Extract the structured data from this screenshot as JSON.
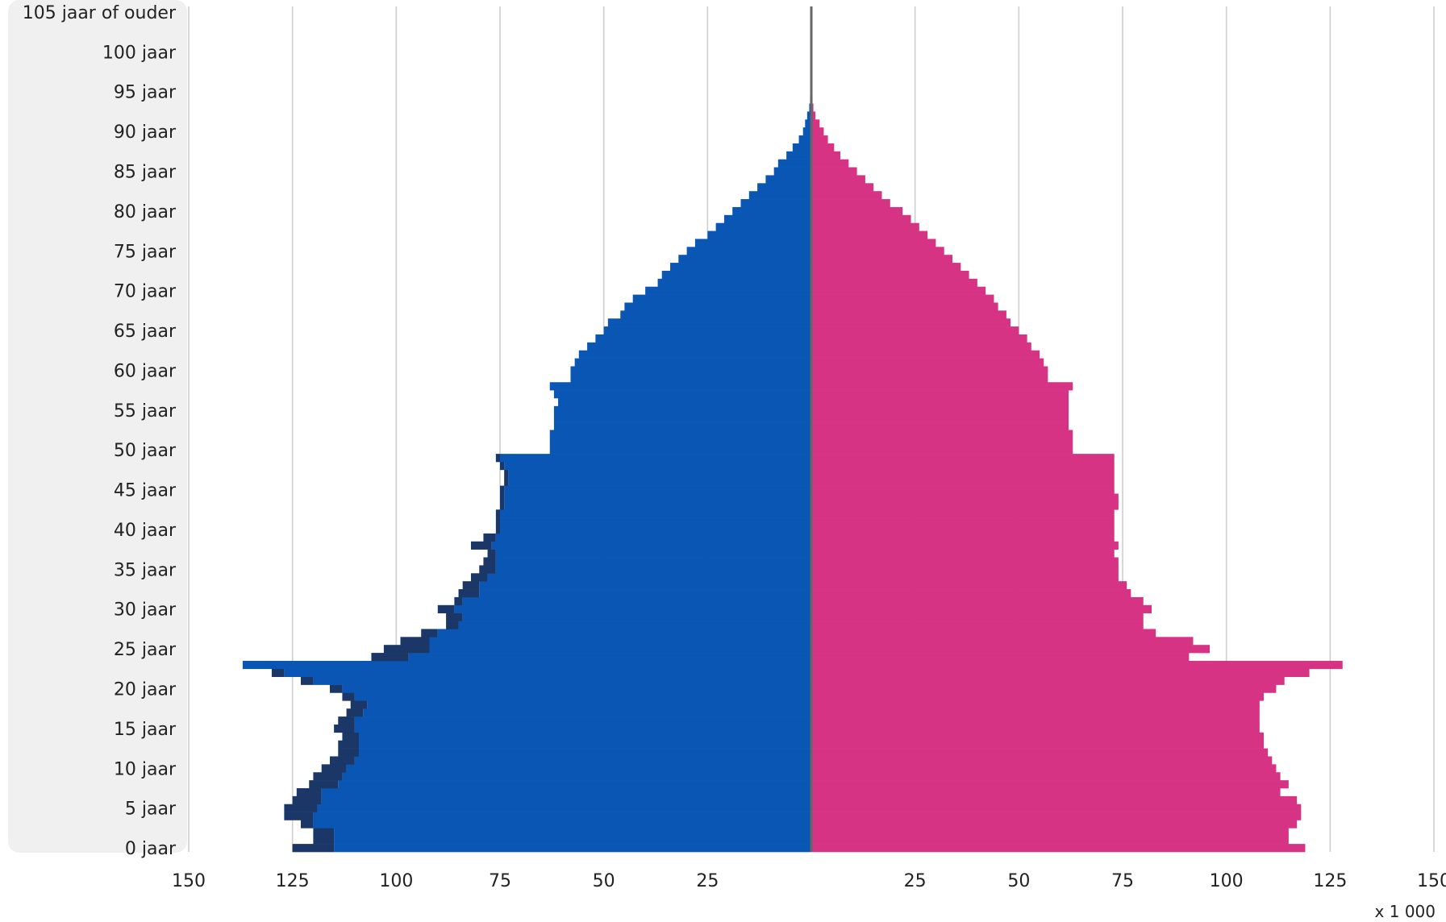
{
  "chart_data": {
    "type": "bar",
    "orientation": "horizontal-population-pyramid",
    "x_unit_label": "x 1 000",
    "x_tick_labels": [
      "150",
      "125",
      "100",
      "75",
      "50",
      "25",
      "",
      "25",
      "50",
      "75",
      "100",
      "125",
      "150"
    ],
    "xlim": [
      -150,
      150
    ],
    "grid": true,
    "age_labels": [
      {
        "age": 0,
        "label": "0 jaar"
      },
      {
        "age": 5,
        "label": "5 jaar"
      },
      {
        "age": 10,
        "label": "10 jaar"
      },
      {
        "age": 15,
        "label": "15 jaar"
      },
      {
        "age": 20,
        "label": "20 jaar"
      },
      {
        "age": 25,
        "label": "25 jaar"
      },
      {
        "age": 30,
        "label": "30 jaar"
      },
      {
        "age": 35,
        "label": "35 jaar"
      },
      {
        "age": 40,
        "label": "40 jaar"
      },
      {
        "age": 45,
        "label": "45 jaar"
      },
      {
        "age": 50,
        "label": "50 jaar"
      },
      {
        "age": 55,
        "label": "55 jaar"
      },
      {
        "age": 60,
        "label": "60 jaar"
      },
      {
        "age": 65,
        "label": "65 jaar"
      },
      {
        "age": 70,
        "label": "70 jaar"
      },
      {
        "age": 75,
        "label": "75 jaar"
      },
      {
        "age": 80,
        "label": "80 jaar"
      },
      {
        "age": 85,
        "label": "85 jaar"
      },
      {
        "age": 90,
        "label": "90 jaar"
      },
      {
        "age": 95,
        "label": "95 jaar"
      },
      {
        "age": 100,
        "label": "100 jaar"
      },
      {
        "age": 105,
        "label": "105 jaar of ouder"
      }
    ],
    "colors": {
      "men": "#0a56b4",
      "men_extra": "#1b3768",
      "women": "#d63384",
      "women_extra": "#a81a82",
      "grid": "#cfcfcf",
      "center_line": "#666666",
      "label_panel": "#f0f0f0"
    },
    "series": [
      {
        "values": [
          115,
          115,
          115,
          120,
          120,
          119,
          118,
          118,
          114,
          113,
          112,
          110,
          109,
          109,
          109,
          110,
          110,
          108,
          107,
          110,
          113,
          120,
          127,
          137,
          97,
          92,
          92,
          90,
          85,
          84,
          86,
          84,
          80,
          80,
          78,
          76,
          76,
          76,
          77,
          76,
          75,
          75,
          75,
          74,
          74,
          74,
          73,
          73,
          74,
          75,
          63,
          63,
          63,
          62,
          62,
          62,
          61,
          62,
          63,
          58,
          58,
          57,
          56,
          54,
          52,
          50,
          49,
          46,
          45,
          43,
          40,
          37,
          36,
          34,
          32,
          30,
          28,
          25,
          23,
          21,
          19,
          17,
          15,
          13,
          11,
          9,
          8,
          6,
          4.5,
          3,
          2,
          1.5,
          1,
          0.5,
          0.3,
          0.2,
          0.1,
          0,
          0,
          0,
          0,
          0,
          0,
          0,
          0,
          0
        ],
        "extra": [
          10,
          5,
          5,
          3,
          7,
          8,
          7,
          6,
          7,
          7,
          6,
          6,
          5,
          5,
          4,
          5,
          4,
          4,
          4,
          3,
          3,
          3,
          3,
          0,
          9,
          11,
          7,
          4,
          3,
          4,
          4,
          2,
          5,
          4,
          4,
          4,
          3,
          2,
          5,
          3,
          1,
          1,
          1,
          1,
          1,
          1,
          1,
          1,
          1,
          1,
          0,
          0,
          0,
          0,
          0,
          0,
          0,
          0,
          0,
          0,
          0,
          0,
          0,
          0,
          0,
          0,
          0,
          0,
          0,
          0,
          0,
          0,
          0,
          0,
          0,
          0,
          0,
          0,
          0,
          0,
          0,
          0,
          0,
          0,
          0,
          0,
          0,
          0,
          0,
          0,
          0,
          0,
          0,
          0,
          0,
          0,
          0,
          0,
          0,
          0,
          0,
          0,
          0,
          0,
          0,
          0
        ]
      },
      {
        "values": [
          119,
          115,
          115,
          117,
          118,
          118,
          117,
          113,
          115,
          113,
          112,
          111,
          110,
          109,
          109,
          108,
          108,
          108,
          108,
          109,
          112,
          114,
          120,
          128,
          91,
          96,
          92,
          83,
          80,
          80,
          82,
          80,
          77,
          76,
          74,
          74,
          74,
          73,
          74,
          73,
          73,
          73,
          73,
          74,
          74,
          73,
          73,
          73,
          73,
          73,
          63,
          63,
          63,
          62,
          62,
          62,
          62,
          62,
          63,
          57,
          57,
          56,
          55,
          53,
          52,
          50,
          48,
          47,
          45,
          44,
          42,
          40,
          38,
          36,
          34,
          32,
          30,
          28,
          26,
          24,
          22,
          19,
          17,
          15,
          13,
          11,
          9,
          7,
          5.5,
          4,
          3,
          2,
          1,
          0.5,
          0.3,
          0.2,
          0.1,
          0,
          0,
          0,
          0,
          0,
          0,
          0,
          0,
          0
        ],
        "extra": [
          0,
          0,
          0,
          0,
          0,
          0,
          0,
          0,
          0,
          0,
          0,
          0,
          0,
          0,
          0,
          0,
          0,
          0,
          0,
          0,
          0,
          0,
          0,
          0,
          0,
          0,
          0,
          0,
          0,
          0,
          0,
          0,
          0,
          0,
          0,
          0,
          0,
          0,
          0,
          0,
          0,
          0,
          0,
          0,
          0,
          0,
          0,
          0,
          0,
          0,
          0,
          0,
          0,
          0,
          0,
          0,
          0,
          0,
          0,
          0,
          0,
          0,
          0,
          0,
          0,
          0,
          0,
          0,
          0,
          0,
          0,
          0,
          0,
          0,
          0,
          0,
          0,
          0,
          0,
          0,
          0,
          0,
          0,
          0,
          0,
          0,
          0,
          0,
          0,
          0,
          0,
          0,
          0,
          0,
          0,
          0,
          0,
          0,
          0,
          0,
          0,
          0,
          0,
          0,
          0,
          0
        ]
      }
    ]
  }
}
